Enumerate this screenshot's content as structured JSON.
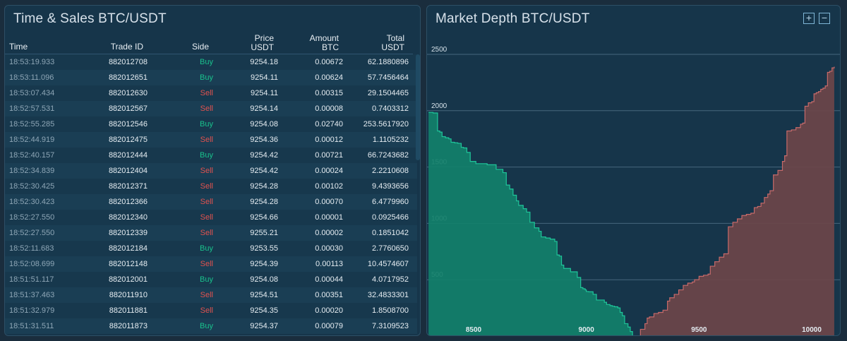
{
  "time_sales": {
    "title": "Time & Sales BTC/USDT",
    "headers": {
      "time": "Time",
      "trade_id": "Trade ID",
      "side": "Side",
      "price_l1": "Price",
      "price_l2": "USDT",
      "amount_l1": "Amount",
      "amount_l2": "BTC",
      "total_l1": "Total",
      "total_l2": "USDT"
    },
    "rows": [
      {
        "time": "18:53:19.933",
        "id": "882012708",
        "side": "Buy",
        "price": "9254.18",
        "amount": "0.00672",
        "total": "62.1880896"
      },
      {
        "time": "18:53:11.096",
        "id": "882012651",
        "side": "Buy",
        "price": "9254.11",
        "amount": "0.00624",
        "total": "57.7456464"
      },
      {
        "time": "18:53:07.434",
        "id": "882012630",
        "side": "Sell",
        "price": "9254.11",
        "amount": "0.00315",
        "total": "29.1504465"
      },
      {
        "time": "18:52:57.531",
        "id": "882012567",
        "side": "Sell",
        "price": "9254.14",
        "amount": "0.00008",
        "total": "0.7403312"
      },
      {
        "time": "18:52:55.285",
        "id": "882012546",
        "side": "Buy",
        "price": "9254.08",
        "amount": "0.02740",
        "total": "253.5617920"
      },
      {
        "time": "18:52:44.919",
        "id": "882012475",
        "side": "Sell",
        "price": "9254.36",
        "amount": "0.00012",
        "total": "1.1105232"
      },
      {
        "time": "18:52:40.157",
        "id": "882012444",
        "side": "Buy",
        "price": "9254.42",
        "amount": "0.00721",
        "total": "66.7243682"
      },
      {
        "time": "18:52:34.839",
        "id": "882012404",
        "side": "Sell",
        "price": "9254.42",
        "amount": "0.00024",
        "total": "2.2210608"
      },
      {
        "time": "18:52:30.425",
        "id": "882012371",
        "side": "Sell",
        "price": "9254.28",
        "amount": "0.00102",
        "total": "9.4393656"
      },
      {
        "time": "18:52:30.423",
        "id": "882012366",
        "side": "Sell",
        "price": "9254.28",
        "amount": "0.00070",
        "total": "6.4779960"
      },
      {
        "time": "18:52:27.550",
        "id": "882012340",
        "side": "Sell",
        "price": "9254.66",
        "amount": "0.00001",
        "total": "0.0925466"
      },
      {
        "time": "18:52:27.550",
        "id": "882012339",
        "side": "Sell",
        "price": "9255.21",
        "amount": "0.00002",
        "total": "0.1851042"
      },
      {
        "time": "18:52:11.683",
        "id": "882012184",
        "side": "Buy",
        "price": "9253.55",
        "amount": "0.00030",
        "total": "2.7760650"
      },
      {
        "time": "18:52:08.699",
        "id": "882012148",
        "side": "Sell",
        "price": "9254.39",
        "amount": "0.00113",
        "total": "10.4574607"
      },
      {
        "time": "18:51:51.117",
        "id": "882012001",
        "side": "Buy",
        "price": "9254.08",
        "amount": "0.00044",
        "total": "4.0717952"
      },
      {
        "time": "18:51:37.463",
        "id": "882011910",
        "side": "Sell",
        "price": "9254.51",
        "amount": "0.00351",
        "total": "32.4833301"
      },
      {
        "time": "18:51:32.979",
        "id": "882011881",
        "side": "Sell",
        "price": "9254.35",
        "amount": "0.00020",
        "total": "1.8508700"
      },
      {
        "time": "18:51:31.511",
        "id": "882011873",
        "side": "Buy",
        "price": "9254.37",
        "amount": "0.00079",
        "total": "7.3109523"
      }
    ]
  },
  "market_depth": {
    "title": "Market Depth BTC/USDT",
    "zoom_in_icon": "plus-icon",
    "zoom_out_icon": "minus-icon",
    "zoom_in_label": "+",
    "zoom_out_label": "−"
  },
  "colors": {
    "bid": "#12806a",
    "ask": "#6d4549",
    "buy_text": "#19c28c",
    "sell_text": "#e0524f"
  },
  "chart_data": {
    "type": "area",
    "title": "",
    "xlabel": "",
    "ylabel": "",
    "xlim": [
      8300,
      10100
    ],
    "ylim": [
      0,
      2500
    ],
    "x_ticks": [
      8500,
      9000,
      9500,
      10000
    ],
    "y_ticks": [
      500,
      1000,
      1500,
      2000,
      2500
    ],
    "grid": "horizontal",
    "series": [
      {
        "side": "bid",
        "points": [
          [
            8300,
            1985
          ],
          [
            8320,
            1980
          ],
          [
            8340,
            1820
          ],
          [
            8350,
            1810
          ],
          [
            8360,
            1770
          ],
          [
            8375,
            1760
          ],
          [
            8390,
            1750
          ],
          [
            8400,
            1720
          ],
          [
            8415,
            1715
          ],
          [
            8430,
            1710
          ],
          [
            8445,
            1675
          ],
          [
            8455,
            1670
          ],
          [
            8470,
            1630
          ],
          [
            8485,
            1550
          ],
          [
            8500,
            1550
          ],
          [
            8510,
            1530
          ],
          [
            8520,
            1530
          ],
          [
            8560,
            1520
          ],
          [
            8600,
            1480
          ],
          [
            8630,
            1450
          ],
          [
            8645,
            1340
          ],
          [
            8660,
            1305
          ],
          [
            8675,
            1250
          ],
          [
            8690,
            1200
          ],
          [
            8700,
            1160
          ],
          [
            8720,
            1130
          ],
          [
            8735,
            1100
          ],
          [
            8750,
            1010
          ],
          [
            8770,
            960
          ],
          [
            8790,
            930
          ],
          [
            8800,
            880
          ],
          [
            8820,
            870
          ],
          [
            8840,
            860
          ],
          [
            8860,
            840
          ],
          [
            8870,
            720
          ],
          [
            8880,
            710
          ],
          [
            8890,
            630
          ],
          [
            8900,
            600
          ],
          [
            8920,
            600
          ],
          [
            8930,
            570
          ],
          [
            8950,
            570
          ],
          [
            8960,
            520
          ],
          [
            8970,
            520
          ],
          [
            8975,
            430
          ],
          [
            8985,
            420
          ],
          [
            8995,
            410
          ],
          [
            9000,
            395
          ],
          [
            9010,
            393
          ],
          [
            9030,
            370
          ],
          [
            9045,
            320
          ],
          [
            9065,
            320
          ],
          [
            9080,
            300
          ],
          [
            9090,
            280
          ],
          [
            9105,
            270
          ],
          [
            9115,
            265
          ],
          [
            9125,
            260
          ],
          [
            9140,
            250
          ],
          [
            9150,
            210
          ],
          [
            9160,
            180
          ],
          [
            9170,
            110
          ],
          [
            9185,
            80
          ],
          [
            9195,
            40
          ],
          [
            9205,
            0
          ]
        ]
      },
      {
        "side": "ask",
        "points": [
          [
            9215,
            0
          ],
          [
            9240,
            60
          ],
          [
            9260,
            110
          ],
          [
            9270,
            160
          ],
          [
            9280,
            170
          ],
          [
            9300,
            200
          ],
          [
            9320,
            210
          ],
          [
            9340,
            230
          ],
          [
            9360,
            310
          ],
          [
            9370,
            340
          ],
          [
            9390,
            370
          ],
          [
            9410,
            410
          ],
          [
            9430,
            450
          ],
          [
            9450,
            470
          ],
          [
            9470,
            480
          ],
          [
            9480,
            500
          ],
          [
            9500,
            530
          ],
          [
            9520,
            540
          ],
          [
            9540,
            550
          ],
          [
            9550,
            620
          ],
          [
            9570,
            660
          ],
          [
            9590,
            700
          ],
          [
            9610,
            730
          ],
          [
            9630,
            970
          ],
          [
            9650,
            1010
          ],
          [
            9670,
            1040
          ],
          [
            9690,
            1070
          ],
          [
            9710,
            1080
          ],
          [
            9730,
            1090
          ],
          [
            9745,
            1140
          ],
          [
            9760,
            1150
          ],
          [
            9775,
            1180
          ],
          [
            9790,
            1230
          ],
          [
            9805,
            1260
          ],
          [
            9815,
            1290
          ],
          [
            9830,
            1430
          ],
          [
            9850,
            1470
          ],
          [
            9870,
            1550
          ],
          [
            9880,
            1600
          ],
          [
            9890,
            1820
          ],
          [
            9910,
            1830
          ],
          [
            9930,
            1850
          ],
          [
            9950,
            1880
          ],
          [
            9960,
            1890
          ],
          [
            9970,
            2040
          ],
          [
            9985,
            2070
          ],
          [
            10000,
            2080
          ],
          [
            10010,
            2150
          ],
          [
            10020,
            2160
          ],
          [
            10030,
            2170
          ],
          [
            10040,
            2190
          ],
          [
            10050,
            2200
          ],
          [
            10060,
            2220
          ],
          [
            10070,
            2340
          ],
          [
            10080,
            2350
          ],
          [
            10090,
            2380
          ],
          [
            10100,
            2390
          ]
        ]
      }
    ]
  }
}
